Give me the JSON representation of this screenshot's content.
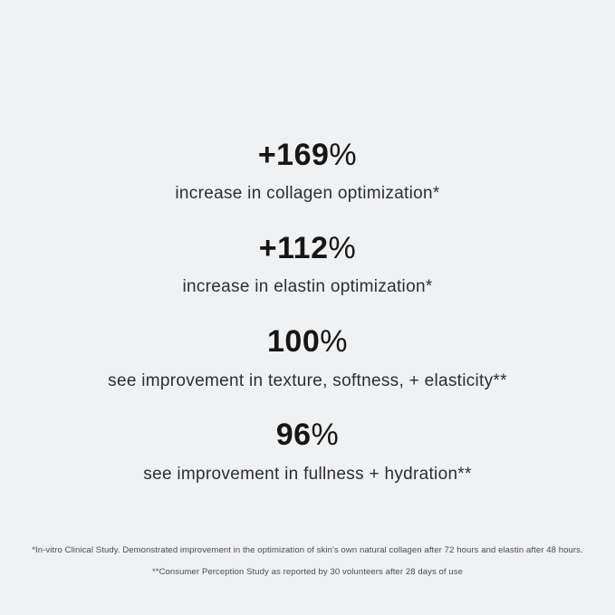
{
  "panel": {
    "background_color": "#f0f1f2",
    "number_color": "#161617",
    "caption_color": "#2d2e30",
    "footnote_color": "#4a4b4d"
  },
  "stats": [
    {
      "number": "+169",
      "unit": "%",
      "caption": "increase in collagen optimization*"
    },
    {
      "number": "+112",
      "unit": "%",
      "caption": "increase in elastin optimization*"
    },
    {
      "number": "100",
      "unit": "%",
      "caption": "see improvement in texture, softness, + elasticity**"
    },
    {
      "number": "96",
      "unit": "%",
      "caption": "see improvement in fullness + hydration**"
    }
  ],
  "footnotes": [
    "*In-vitro Clinical Study. Demonstrated improvement in the optimization of skin's own natural collagen after 72 hours and elastin after 48 hours.",
    "**Consumer Perception Study as reported by 30 volunteers after 28 days of use"
  ]
}
